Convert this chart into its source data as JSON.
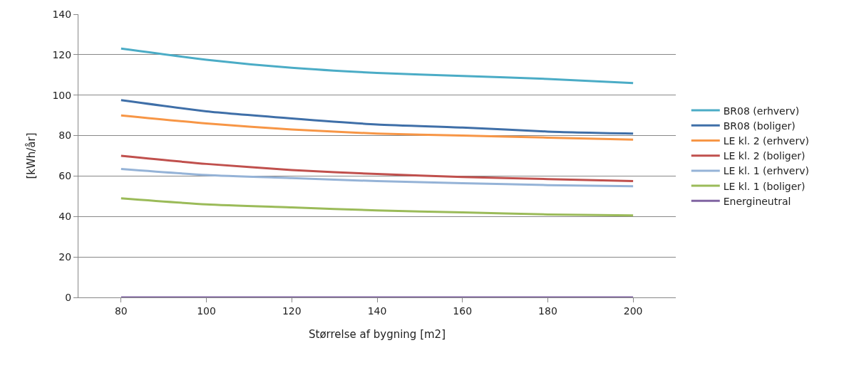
{
  "chart_data": {
    "type": "line",
    "xlabel": "Størrelse af bygning [m2]",
    "ylabel": "[kWh/år]",
    "x": [
      80,
      100,
      120,
      140,
      160,
      180,
      200
    ],
    "xlim": [
      70,
      210
    ],
    "xticks": [
      80,
      100,
      120,
      140,
      160,
      180,
      200
    ],
    "ylim": [
      0,
      140
    ],
    "yticks": [
      0,
      20,
      40,
      60,
      80,
      100,
      120,
      140
    ],
    "grid": "y",
    "legend": "right",
    "marker": "none",
    "line_style": "solid",
    "series": [
      {
        "name": "BR08 (erhverv)",
        "color": "#4bacc6",
        "values": [
          123,
          117.5,
          113.5,
          111,
          109.5,
          108,
          106
        ]
      },
      {
        "name": "BR08 (boliger)",
        "color": "#3f6fa8",
        "values": [
          97.5,
          92,
          88.5,
          85.5,
          84,
          82,
          81
        ]
      },
      {
        "name": "LE kl. 2 (erhverv)",
        "color": "#f79646",
        "values": [
          90,
          86,
          83,
          81,
          80,
          79,
          78
        ]
      },
      {
        "name": "LE kl. 2 (boliger)",
        "color": "#c0504d",
        "values": [
          70,
          66,
          63,
          61,
          59.5,
          58.5,
          57.5
        ]
      },
      {
        "name": "LE kl. 1 (erhverv)",
        "color": "#95b3d7",
        "values": [
          63.5,
          60.5,
          59,
          57.5,
          56.5,
          55.5,
          55
        ]
      },
      {
        "name": "LE kl. 1 (boliger)",
        "color": "#9bbb59",
        "values": [
          49,
          46,
          44.5,
          43,
          42,
          41,
          40.5
        ]
      },
      {
        "name": "Energineutral",
        "color": "#8064a2",
        "values": [
          0,
          0,
          0,
          0,
          0,
          0,
          0
        ]
      }
    ]
  }
}
